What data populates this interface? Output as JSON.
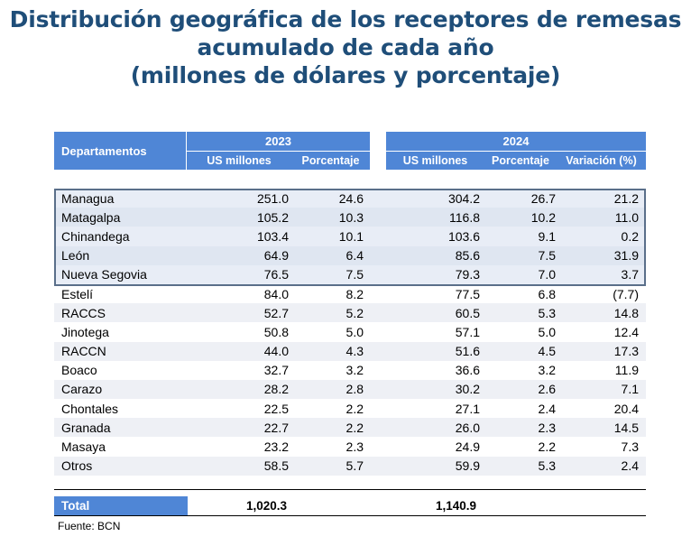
{
  "title": {
    "line1": "Distribución geográfica de los receptores de remesas",
    "line2": "acumulado de cada año",
    "line3": "(millones de dólares y porcentaje)"
  },
  "header": {
    "departamentos": "Departamentos",
    "year_2023": "2023",
    "year_2024": "2024",
    "col_usd_2023": "US millones",
    "col_pct_2023": "Porcentaje",
    "col_usd_2024": "US millones",
    "col_pct_2024": "Porcentaje",
    "col_var": "Variación (%)"
  },
  "rows": [
    {
      "name": "Managua",
      "v23": "251.0",
      "p23": "24.6",
      "v24": "304.2",
      "p24": "26.7",
      "var": "21.2"
    },
    {
      "name": "Matagalpa",
      "v23": "105.2",
      "p23": "10.3",
      "v24": "116.8",
      "p24": "10.2",
      "var": "11.0"
    },
    {
      "name": "Chinandega",
      "v23": "103.4",
      "p23": "10.1",
      "v24": "103.6",
      "p24": "9.1",
      "var": "0.2"
    },
    {
      "name": "León",
      "v23": "64.9",
      "p23": "6.4",
      "v24": "85.6",
      "p24": "7.5",
      "var": "31.9"
    },
    {
      "name": "Nueva Segovia",
      "v23": "76.5",
      "p23": "7.5",
      "v24": "79.3",
      "p24": "7.0",
      "var": "3.7"
    },
    {
      "name": "Estelí",
      "v23": "84.0",
      "p23": "8.2",
      "v24": "77.5",
      "p24": "6.8",
      "var": "(7.7)"
    },
    {
      "name": "RACCS",
      "v23": "52.7",
      "p23": "5.2",
      "v24": "60.5",
      "p24": "5.3",
      "var": "14.8"
    },
    {
      "name": "Jinotega",
      "v23": "50.8",
      "p23": "5.0",
      "v24": "57.1",
      "p24": "5.0",
      "var": "12.4"
    },
    {
      "name": "RACCN",
      "v23": "44.0",
      "p23": "4.3",
      "v24": "51.6",
      "p24": "4.5",
      "var": "17.3"
    },
    {
      "name": "Boaco",
      "v23": "32.7",
      "p23": "3.2",
      "v24": "36.6",
      "p24": "3.2",
      "var": "11.9"
    },
    {
      "name": "Carazo",
      "v23": "28.2",
      "p23": "2.8",
      "v24": "30.2",
      "p24": "2.6",
      "var": "7.1"
    },
    {
      "name": "Chontales",
      "v23": "22.5",
      "p23": "2.2",
      "v24": "27.1",
      "p24": "2.4",
      "var": "20.4"
    },
    {
      "name": "Granada",
      "v23": "22.7",
      "p23": "2.2",
      "v24": "26.0",
      "p24": "2.3",
      "var": "14.5"
    },
    {
      "name": "Masaya",
      "v23": "23.2",
      "p23": "2.3",
      "v24": "24.9",
      "p24": "2.2",
      "var": "7.3"
    },
    {
      "name": "Otros",
      "v23": "58.5",
      "p23": "5.7",
      "v24": "59.9",
      "p24": "5.3",
      "var": "2.4"
    }
  ],
  "total": {
    "label": "Total",
    "v23": "1,020.3",
    "v24": "1,140.9"
  },
  "source": "Fuente: BCN",
  "colors": {
    "title": "#1f4e79",
    "header_bg": "#4f86d6",
    "row_alt": "#eef0f5",
    "highlight_border": "#5a6f8a"
  }
}
